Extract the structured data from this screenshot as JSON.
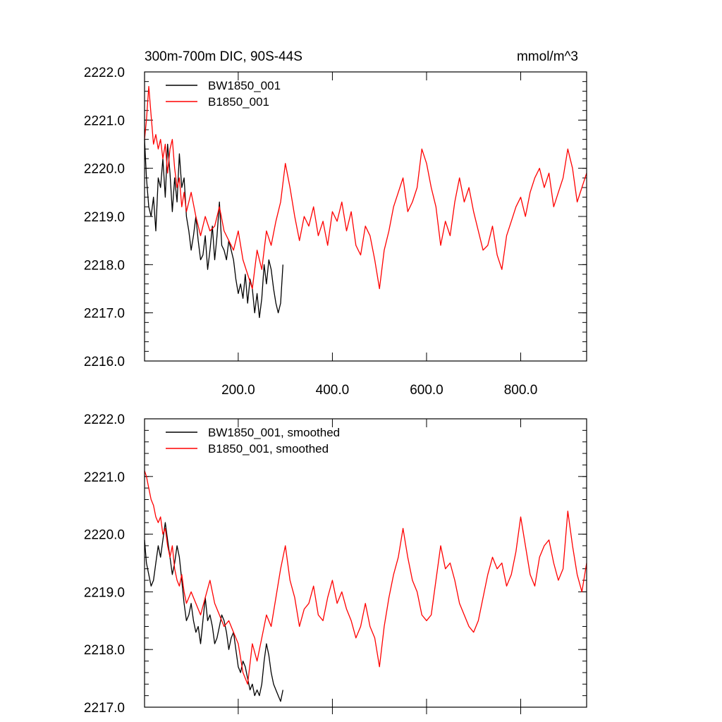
{
  "chart_data": [
    {
      "type": "line",
      "title": "300m-700m DIC, 90S-44S",
      "units": "mmol/m^3",
      "xlim": [
        1,
        940
      ],
      "ylim": [
        2216.0,
        2222.0
      ],
      "x_ticks": [
        "200.0",
        "400.0",
        "600.0",
        "800.0"
      ],
      "y_ticks": [
        "2222.0",
        "2221.0",
        "2220.0",
        "2219.0",
        "2218.0",
        "2217.0",
        "2216.0"
      ],
      "legend_position": "top-left",
      "series": [
        {
          "name": "BW1850_001",
          "color": "#000000",
          "x": [
            1,
            5,
            10,
            15,
            20,
            25,
            30,
            35,
            40,
            45,
            50,
            55,
            60,
            65,
            70,
            75,
            80,
            85,
            90,
            95,
            100,
            105,
            110,
            115,
            120,
            125,
            130,
            135,
            140,
            145,
            150,
            155,
            160,
            165,
            170,
            175,
            180,
            185,
            190,
            195,
            200,
            205,
            210,
            215,
            220,
            225,
            230,
            235,
            240,
            245,
            250,
            255,
            260,
            265,
            270,
            275,
            280,
            285,
            290,
            295
          ],
          "values": [
            2220.6,
            2219.8,
            2219.2,
            2219.0,
            2219.4,
            2218.7,
            2219.8,
            2219.6,
            2220.2,
            2219.4,
            2220.5,
            2219.9,
            2219.1,
            2219.8,
            2219.3,
            2220.3,
            2219.6,
            2219.8,
            2219.0,
            2218.7,
            2218.3,
            2218.6,
            2219.0,
            2218.5,
            2218.1,
            2218.2,
            2218.6,
            2217.9,
            2218.3,
            2218.8,
            2218.1,
            2218.6,
            2219.3,
            2218.4,
            2218.3,
            2218.1,
            2218.5,
            2218.3,
            2218.1,
            2217.7,
            2217.4,
            2217.6,
            2217.3,
            2217.8,
            2217.2,
            2217.7,
            2217.5,
            2217.0,
            2217.4,
            2216.9,
            2217.3,
            2218.0,
            2217.6,
            2218.1,
            2217.9,
            2217.5,
            2217.2,
            2217.0,
            2217.2,
            2218.0
          ]
        },
        {
          "name": "B1850_001",
          "color": "#ff0000",
          "x": [
            1,
            5,
            10,
            15,
            20,
            25,
            30,
            35,
            40,
            45,
            50,
            55,
            60,
            65,
            70,
            75,
            80,
            85,
            90,
            95,
            100,
            110,
            120,
            130,
            140,
            150,
            160,
            170,
            180,
            190,
            200,
            210,
            220,
            230,
            240,
            250,
            260,
            270,
            280,
            290,
            300,
            310,
            320,
            330,
            340,
            350,
            360,
            370,
            380,
            390,
            400,
            410,
            420,
            430,
            440,
            450,
            460,
            470,
            480,
            490,
            500,
            510,
            520,
            530,
            540,
            550,
            560,
            570,
            580,
            590,
            600,
            610,
            620,
            630,
            640,
            650,
            660,
            670,
            680,
            690,
            700,
            710,
            720,
            730,
            740,
            750,
            760,
            770,
            780,
            790,
            800,
            810,
            820,
            830,
            840,
            850,
            860,
            870,
            880,
            890,
            900,
            910,
            920,
            930,
            940
          ],
          "values": [
            2220.6,
            2221.0,
            2221.7,
            2221.1,
            2220.5,
            2220.7,
            2220.4,
            2220.6,
            2220.2,
            2220.5,
            2219.9,
            2220.4,
            2220.6,
            2220.0,
            2219.6,
            2219.8,
            2219.2,
            2219.5,
            2219.1,
            2219.3,
            2219.5,
            2219.0,
            2218.6,
            2219.0,
            2218.7,
            2218.8,
            2219.2,
            2218.7,
            2218.5,
            2218.3,
            2218.7,
            2218.1,
            2217.8,
            2217.5,
            2218.3,
            2217.9,
            2218.7,
            2218.4,
            2218.9,
            2219.3,
            2220.1,
            2219.6,
            2219.0,
            2218.5,
            2219.0,
            2218.8,
            2219.2,
            2218.6,
            2218.9,
            2218.4,
            2219.1,
            2218.9,
            2219.3,
            2218.7,
            2219.1,
            2218.4,
            2218.2,
            2218.8,
            2218.6,
            2218.1,
            2217.5,
            2218.3,
            2218.7,
            2219.2,
            2219.5,
            2219.8,
            2219.1,
            2219.3,
            2219.6,
            2220.4,
            2220.1,
            2219.6,
            2219.2,
            2218.4,
            2218.9,
            2218.6,
            2219.3,
            2219.8,
            2219.3,
            2219.6,
            2219.1,
            2218.7,
            2218.3,
            2218.4,
            2218.8,
            2218.2,
            2217.9,
            2218.6,
            2218.9,
            2219.2,
            2219.4,
            2219.0,
            2219.5,
            2219.8,
            2220.0,
            2219.6,
            2219.9,
            2219.2,
            2219.5,
            2219.8,
            2220.4,
            2220.0,
            2219.3,
            2219.6,
            2219.9
          ]
        }
      ]
    },
    {
      "type": "line",
      "title": "",
      "xlim": [
        1,
        940
      ],
      "ylim": [
        2217.0,
        2222.0
      ],
      "y_ticks": [
        "2222.0",
        "2221.0",
        "2220.0",
        "2219.0",
        "2218.0",
        "2217.0"
      ],
      "legend_position": "top-left",
      "series": [
        {
          "name": "BW1850_001, smoothed",
          "color": "#000000",
          "x": [
            1,
            5,
            10,
            15,
            20,
            25,
            30,
            35,
            40,
            45,
            50,
            55,
            60,
            65,
            70,
            75,
            80,
            85,
            90,
            95,
            100,
            105,
            110,
            115,
            120,
            125,
            130,
            135,
            140,
            145,
            150,
            155,
            160,
            165,
            170,
            175,
            180,
            185,
            190,
            195,
            200,
            205,
            210,
            215,
            220,
            225,
            230,
            235,
            240,
            245,
            250,
            255,
            260,
            265,
            270,
            275,
            280,
            285,
            290,
            295
          ],
          "values": [
            2219.9,
            2219.5,
            2219.3,
            2219.1,
            2219.2,
            2219.5,
            2219.8,
            2219.6,
            2219.9,
            2220.2,
            2219.9,
            2219.6,
            2219.3,
            2219.5,
            2219.8,
            2219.6,
            2219.2,
            2218.8,
            2218.5,
            2218.6,
            2218.8,
            2218.5,
            2218.3,
            2218.4,
            2218.1,
            2218.5,
            2218.9,
            2218.5,
            2218.6,
            2218.4,
            2218.1,
            2218.2,
            2218.4,
            2218.6,
            2218.5,
            2218.3,
            2218.0,
            2218.2,
            2218.3,
            2218.0,
            2217.7,
            2217.6,
            2217.8,
            2217.7,
            2217.5,
            2217.3,
            2217.4,
            2217.2,
            2217.3,
            2217.2,
            2217.4,
            2217.8,
            2218.1,
            2217.9,
            2217.6,
            2217.4,
            2217.3,
            2217.2,
            2217.1,
            2217.3
          ]
        },
        {
          "name": "B1850_001, smoothed",
          "color": "#ff0000",
          "x": [
            1,
            5,
            10,
            15,
            20,
            25,
            30,
            35,
            40,
            45,
            50,
            55,
            60,
            65,
            70,
            75,
            80,
            85,
            90,
            95,
            100,
            110,
            120,
            130,
            140,
            150,
            160,
            170,
            180,
            190,
            200,
            210,
            220,
            230,
            240,
            250,
            260,
            270,
            280,
            290,
            300,
            310,
            320,
            330,
            340,
            350,
            360,
            370,
            380,
            390,
            400,
            410,
            420,
            430,
            440,
            450,
            460,
            470,
            480,
            490,
            500,
            510,
            520,
            530,
            540,
            550,
            560,
            570,
            580,
            590,
            600,
            610,
            620,
            630,
            640,
            650,
            660,
            670,
            680,
            690,
            700,
            710,
            720,
            730,
            740,
            750,
            760,
            770,
            780,
            790,
            800,
            810,
            820,
            830,
            840,
            850,
            860,
            870,
            880,
            890,
            900,
            910,
            920,
            930,
            940
          ],
          "values": [
            2221.1,
            2221.0,
            2220.8,
            2220.6,
            2220.5,
            2220.3,
            2220.2,
            2220.3,
            2220.0,
            2220.1,
            2219.8,
            2219.6,
            2219.8,
            2219.4,
            2219.2,
            2219.1,
            2219.3,
            2219.0,
            2218.8,
            2218.9,
            2219.0,
            2218.8,
            2218.6,
            2218.9,
            2219.2,
            2218.8,
            2218.6,
            2218.4,
            2218.5,
            2218.3,
            2218.1,
            2217.6,
            2217.4,
            2218.1,
            2217.8,
            2218.2,
            2218.6,
            2218.4,
            2218.9,
            2219.4,
            2219.8,
            2219.2,
            2218.9,
            2218.4,
            2218.7,
            2218.8,
            2219.1,
            2218.6,
            2218.5,
            2218.9,
            2219.2,
            2218.8,
            2219.0,
            2218.7,
            2218.5,
            2218.2,
            2218.4,
            2218.8,
            2218.4,
            2218.2,
            2217.7,
            2218.4,
            2218.9,
            2219.3,
            2219.6,
            2220.1,
            2219.6,
            2219.2,
            2219.0,
            2218.6,
            2218.5,
            2218.6,
            2219.2,
            2219.8,
            2219.4,
            2219.5,
            2219.2,
            2218.8,
            2218.6,
            2218.4,
            2218.3,
            2218.5,
            2218.9,
            2219.3,
            2219.6,
            2219.4,
            2219.5,
            2219.1,
            2219.3,
            2219.7,
            2220.3,
            2219.8,
            2219.3,
            2219.1,
            2219.6,
            2219.8,
            2219.9,
            2219.5,
            2219.2,
            2219.4,
            2220.4,
            2219.8,
            2219.3,
            2219.0,
            2219.5
          ]
        }
      ]
    }
  ]
}
